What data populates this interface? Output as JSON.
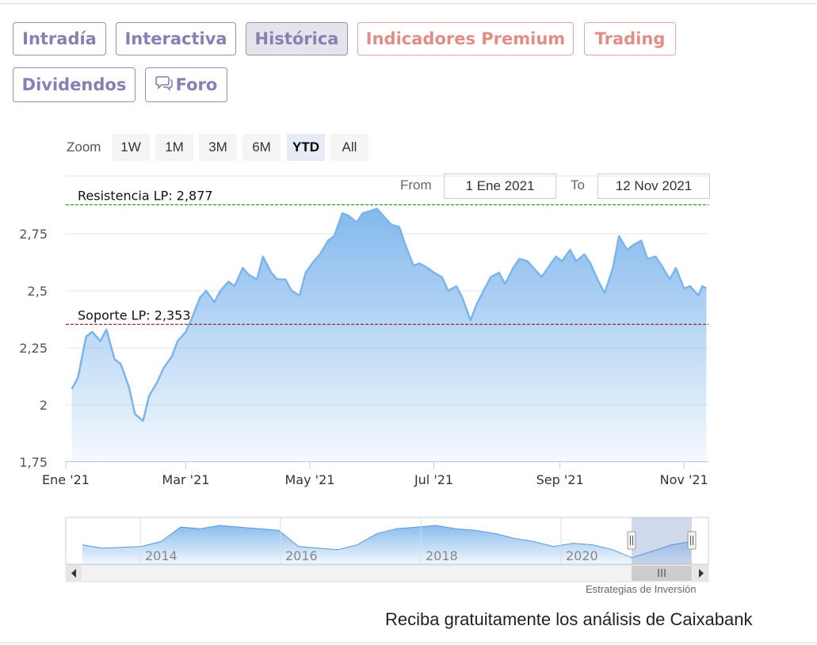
{
  "tabs": [
    {
      "label": "Intradía",
      "kind": "normal"
    },
    {
      "label": "Interactiva",
      "kind": "normal"
    },
    {
      "label": "Histórica",
      "kind": "active"
    },
    {
      "label": "Indicadores Premium",
      "kind": "premium"
    },
    {
      "label": "Trading",
      "kind": "premium"
    },
    {
      "label": "Dividendos",
      "kind": "normal"
    },
    {
      "label": "Foro",
      "kind": "normal",
      "icon": "speech-bubbles-icon"
    }
  ],
  "zoom": {
    "label": "Zoom",
    "buttons": [
      "1W",
      "1M",
      "3M",
      "6M",
      "YTD",
      "All"
    ],
    "selected": "YTD"
  },
  "range": {
    "from_label": "From",
    "from_value": "1 Ene 2021",
    "to_label": "To",
    "to_value": "12 Nov 2021"
  },
  "credit": "Estrategias de Inversión",
  "cta": "Reciba gratuitamente los análisis de Caixabank",
  "colors": {
    "accent": "#7cb5ec",
    "resistance": "#2e8b2e",
    "support": "#8b1a1a",
    "tab_text": "#8a7fb0",
    "premium_text": "#e08e86"
  },
  "chart_data": {
    "type": "area",
    "y_ticks": [
      "1,75",
      "2",
      "2,25",
      "2,5",
      "2,75"
    ],
    "y_tick_values": [
      1.75,
      2.0,
      2.25,
      2.5,
      2.75
    ],
    "x_ticks": [
      "Ene '21",
      "Mar '21",
      "May '21",
      "Jul '21",
      "Sep '21",
      "Nov '21"
    ],
    "ylim": [
      1.75,
      2.875
    ],
    "grid": true,
    "series": [
      {
        "values": [
          {
            "x": "2021-01-04",
            "y": 2.07
          },
          {
            "x": "2021-01-07",
            "y": 2.12
          },
          {
            "x": "2021-01-11",
            "y": 2.3
          },
          {
            "x": "2021-01-14",
            "y": 2.32
          },
          {
            "x": "2021-01-18",
            "y": 2.28
          },
          {
            "x": "2021-01-21",
            "y": 2.33
          },
          {
            "x": "2021-01-25",
            "y": 2.2
          },
          {
            "x": "2021-01-28",
            "y": 2.18
          },
          {
            "x": "2021-02-01",
            "y": 2.08
          },
          {
            "x": "2021-02-04",
            "y": 1.96
          },
          {
            "x": "2021-02-08",
            "y": 1.93
          },
          {
            "x": "2021-02-11",
            "y": 2.04
          },
          {
            "x": "2021-02-15",
            "y": 2.1
          },
          {
            "x": "2021-02-18",
            "y": 2.16
          },
          {
            "x": "2021-02-22",
            "y": 2.21
          },
          {
            "x": "2021-02-25",
            "y": 2.28
          },
          {
            "x": "2021-03-01",
            "y": 2.32
          },
          {
            "x": "2021-03-04",
            "y": 2.38
          },
          {
            "x": "2021-03-08",
            "y": 2.47
          },
          {
            "x": "2021-03-11",
            "y": 2.5
          },
          {
            "x": "2021-03-15",
            "y": 2.45
          },
          {
            "x": "2021-03-18",
            "y": 2.5
          },
          {
            "x": "2021-03-22",
            "y": 2.54
          },
          {
            "x": "2021-03-25",
            "y": 2.52
          },
          {
            "x": "2021-03-29",
            "y": 2.6
          },
          {
            "x": "2021-04-01",
            "y": 2.57
          },
          {
            "x": "2021-04-05",
            "y": 2.55
          },
          {
            "x": "2021-04-08",
            "y": 2.65
          },
          {
            "x": "2021-04-12",
            "y": 2.58
          },
          {
            "x": "2021-04-15",
            "y": 2.55
          },
          {
            "x": "2021-04-19",
            "y": 2.55
          },
          {
            "x": "2021-04-22",
            "y": 2.5
          },
          {
            "x": "2021-04-26",
            "y": 2.48
          },
          {
            "x": "2021-04-29",
            "y": 2.58
          },
          {
            "x": "2021-05-03",
            "y": 2.63
          },
          {
            "x": "2021-05-06",
            "y": 2.66
          },
          {
            "x": "2021-05-10",
            "y": 2.72
          },
          {
            "x": "2021-05-13",
            "y": 2.74
          },
          {
            "x": "2021-05-17",
            "y": 2.84
          },
          {
            "x": "2021-05-20",
            "y": 2.83
          },
          {
            "x": "2021-05-24",
            "y": 2.8
          },
          {
            "x": "2021-05-27",
            "y": 2.84
          },
          {
            "x": "2021-05-31",
            "y": 2.85
          },
          {
            "x": "2021-06-03",
            "y": 2.86
          },
          {
            "x": "2021-06-07",
            "y": 2.82
          },
          {
            "x": "2021-06-10",
            "y": 2.79
          },
          {
            "x": "2021-06-14",
            "y": 2.78
          },
          {
            "x": "2021-06-17",
            "y": 2.7
          },
          {
            "x": "2021-06-21",
            "y": 2.61
          },
          {
            "x": "2021-06-24",
            "y": 2.62
          },
          {
            "x": "2021-06-28",
            "y": 2.6
          },
          {
            "x": "2021-07-01",
            "y": 2.58
          },
          {
            "x": "2021-07-05",
            "y": 2.56
          },
          {
            "x": "2021-07-08",
            "y": 2.5
          },
          {
            "x": "2021-07-12",
            "y": 2.52
          },
          {
            "x": "2021-07-15",
            "y": 2.47
          },
          {
            "x": "2021-07-19",
            "y": 2.37
          },
          {
            "x": "2021-07-22",
            "y": 2.44
          },
          {
            "x": "2021-07-26",
            "y": 2.51
          },
          {
            "x": "2021-07-29",
            "y": 2.56
          },
          {
            "x": "2021-08-02",
            "y": 2.58
          },
          {
            "x": "2021-08-05",
            "y": 2.53
          },
          {
            "x": "2021-08-09",
            "y": 2.6
          },
          {
            "x": "2021-08-12",
            "y": 2.64
          },
          {
            "x": "2021-08-16",
            "y": 2.63
          },
          {
            "x": "2021-08-19",
            "y": 2.6
          },
          {
            "x": "2021-08-23",
            "y": 2.56
          },
          {
            "x": "2021-08-26",
            "y": 2.6
          },
          {
            "x": "2021-08-30",
            "y": 2.65
          },
          {
            "x": "2021-09-02",
            "y": 2.63
          },
          {
            "x": "2021-09-06",
            "y": 2.68
          },
          {
            "x": "2021-09-09",
            "y": 2.63
          },
          {
            "x": "2021-09-13",
            "y": 2.66
          },
          {
            "x": "2021-09-16",
            "y": 2.62
          },
          {
            "x": "2021-09-20",
            "y": 2.54
          },
          {
            "x": "2021-09-23",
            "y": 2.49
          },
          {
            "x": "2021-09-27",
            "y": 2.6
          },
          {
            "x": "2021-09-30",
            "y": 2.74
          },
          {
            "x": "2021-10-04",
            "y": 2.68
          },
          {
            "x": "2021-10-07",
            "y": 2.7
          },
          {
            "x": "2021-10-11",
            "y": 2.72
          },
          {
            "x": "2021-10-14",
            "y": 2.64
          },
          {
            "x": "2021-10-18",
            "y": 2.65
          },
          {
            "x": "2021-10-21",
            "y": 2.61
          },
          {
            "x": "2021-10-25",
            "y": 2.55
          },
          {
            "x": "2021-10-28",
            "y": 2.6
          },
          {
            "x": "2021-11-01",
            "y": 2.51
          },
          {
            "x": "2021-11-04",
            "y": 2.52
          },
          {
            "x": "2021-11-08",
            "y": 2.48
          },
          {
            "x": "2021-11-10",
            "y": 2.52
          },
          {
            "x": "2021-11-12",
            "y": 2.51
          }
        ]
      }
    ],
    "annotations": [
      {
        "label": "Resistencia LP: 2,877",
        "y": 2.877,
        "style": "dashed",
        "color": "#2e8b2e"
      },
      {
        "label": "Soporte LP: 2,353",
        "y": 2.353,
        "style": "dashed",
        "color": "#8b1a1a"
      }
    ],
    "navigator": {
      "year_labels": [
        "2014",
        "2016",
        "2018",
        "2020"
      ],
      "values": [
        2.5,
        2.3,
        2.35,
        2.4,
        2.7,
        3.6,
        3.5,
        3.7,
        3.6,
        3.5,
        3.4,
        2.4,
        2.3,
        2.2,
        2.5,
        3.2,
        3.5,
        3.6,
        3.7,
        3.5,
        3.4,
        3.2,
        2.9,
        2.7,
        2.4,
        2.6,
        2.5,
        2.2,
        1.7,
        2.1,
        2.5,
        2.7
      ]
    }
  }
}
